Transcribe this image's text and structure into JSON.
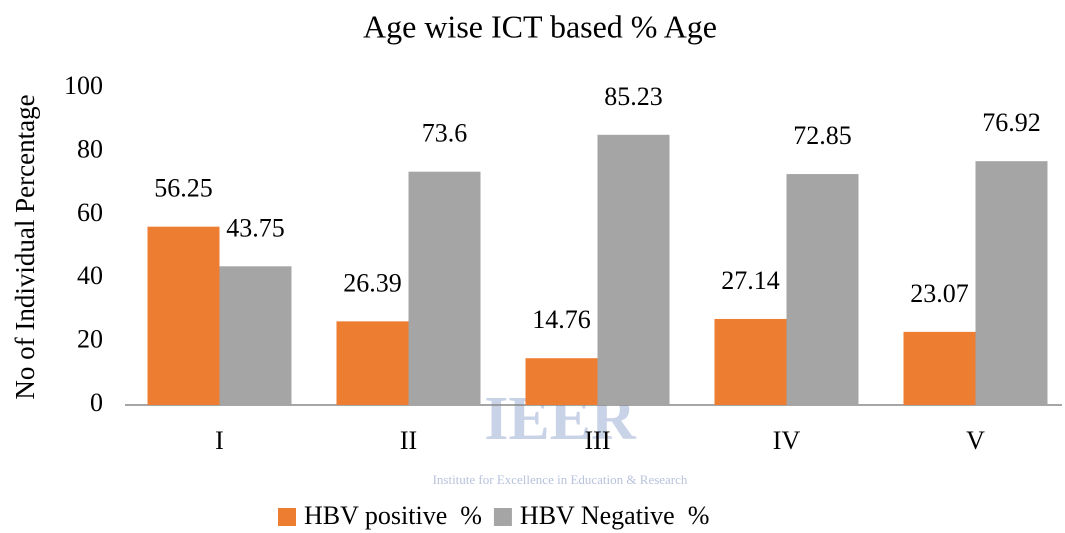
{
  "chart_data": {
    "type": "bar",
    "title": "Age wise ICT based % Age",
    "y_label": "No of Individual Percentage",
    "categories": [
      "I",
      "II",
      "III",
      "IV",
      "V"
    ],
    "series": [
      {
        "name": "HBV positive  %",
        "color": "#ed7d31",
        "values": [
          56.25,
          26.39,
          14.76,
          27.14,
          23.07
        ]
      },
      {
        "name": "HBV Negative  %",
        "color": "#a5a5a5",
        "values": [
          43.75,
          73.6,
          85.23,
          72.85,
          76.92
        ]
      }
    ],
    "ylim": [
      0,
      100
    ],
    "yticks": [
      0,
      20,
      40,
      60,
      80,
      100
    ],
    "grid": false,
    "legend": "bottom",
    "watermark": {
      "title": "IEER",
      "subtitle": "Institute for Excellence in Education & Research"
    }
  }
}
